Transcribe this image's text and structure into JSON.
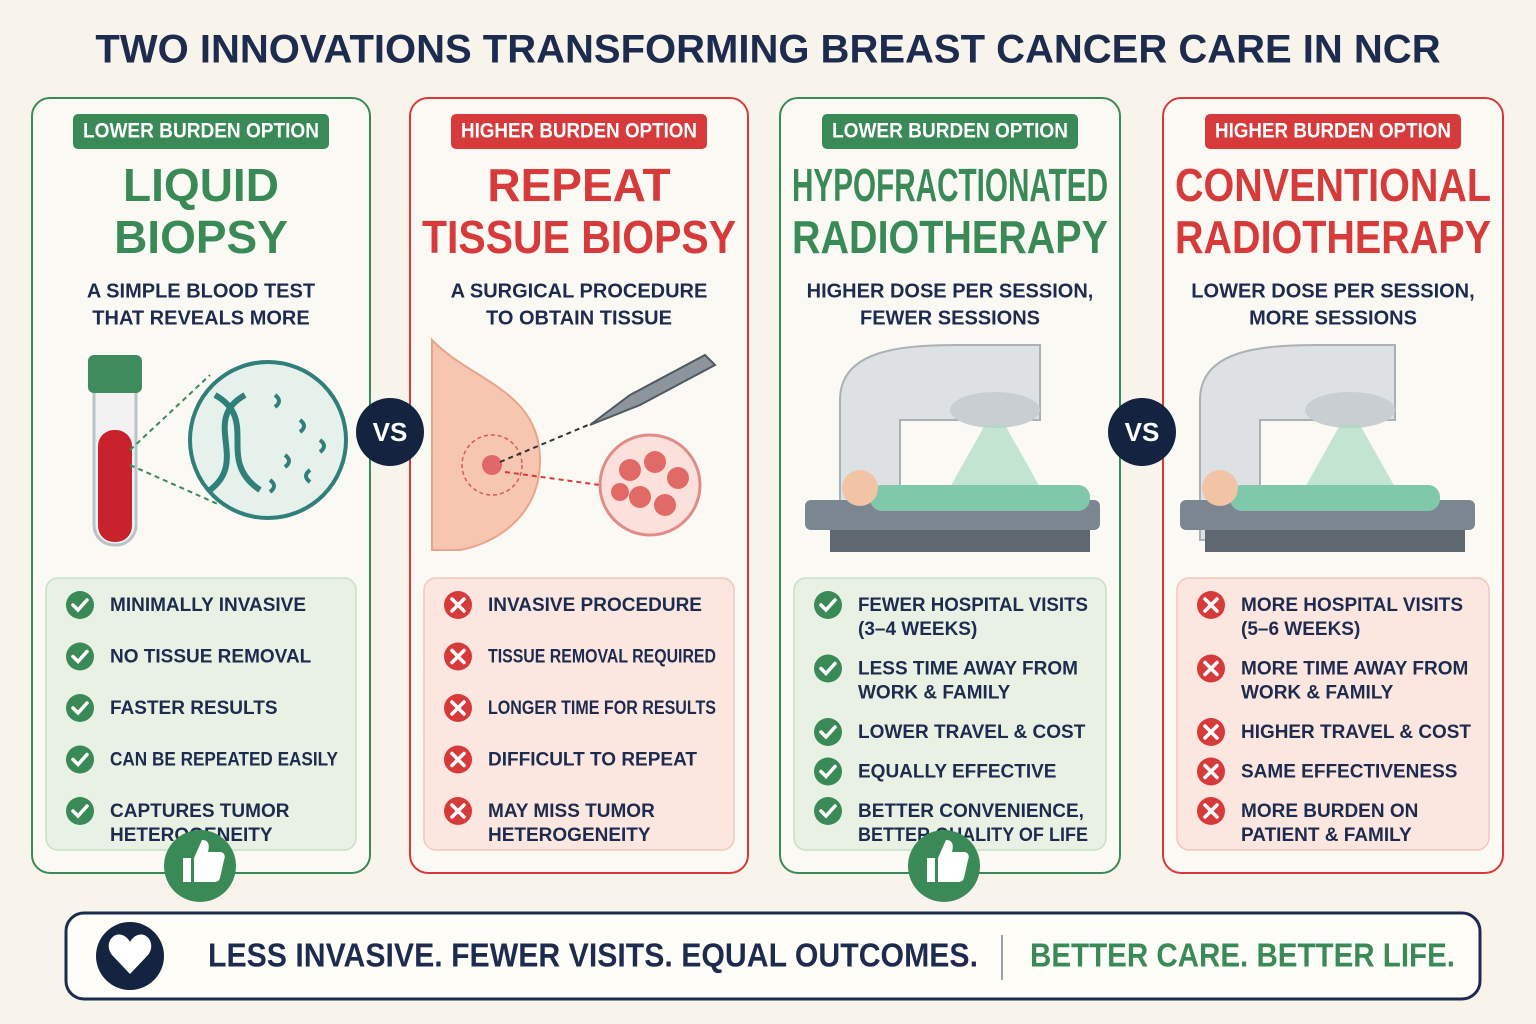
{
  "header": {
    "title": "TWO INNOVATIONS TRANSFORMING BREAST CANCER CARE IN NCR"
  },
  "cards": [
    {
      "badge": "LOWER BURDEN OPTION",
      "color": "#3a8a57",
      "icon": "check",
      "title": [
        "LIQUID",
        "BIOPSY"
      ],
      "subtitle": [
        "A SIMPLE BLOOD TEST",
        "THAT REVEALS MORE"
      ],
      "items": [
        [
          "MINIMALLY INVASIVE"
        ],
        [
          "NO TISSUE REMOVAL"
        ],
        [
          "FASTER RESULTS"
        ],
        [
          "CAN BE REPEATED EASILY"
        ],
        [
          "CAPTURES TUMOR",
          "HETEROGENEITY"
        ]
      ]
    },
    {
      "badge": "HIGHER BURDEN OPTION",
      "color": "#d63a3a",
      "icon": "x",
      "title": [
        "REPEAT",
        "TISSUE BIOPSY"
      ],
      "subtitle": [
        "A SURGICAL PROCEDURE",
        "TO OBTAIN TISSUE"
      ],
      "items": [
        [
          "INVASIVE PROCEDURE"
        ],
        [
          "TISSUE REMOVAL REQUIRED"
        ],
        [
          "LONGER TIME FOR RESULTS"
        ],
        [
          "DIFFICULT TO REPEAT"
        ],
        [
          "MAY MISS TUMOR",
          "HETEROGENEITY"
        ]
      ]
    },
    {
      "badge": "LOWER BURDEN OPTION",
      "color": "#3a8a57",
      "icon": "check",
      "title": [
        "HYPOFRACTIONATED",
        "RADIOTHERAPY"
      ],
      "subtitle": [
        "HIGHER DOSE PER SESSION,",
        "FEWER SESSIONS"
      ],
      "items": [
        [
          "FEWER HOSPITAL VISITS",
          "(3–4 WEEKS)"
        ],
        [
          "LESS TIME AWAY FROM",
          "WORK & FAMILY"
        ],
        [
          "LOWER TRAVEL & COST"
        ],
        [
          "EQUALLY EFFECTIVE"
        ],
        [
          "BETTER CONVENIENCE,",
          "BETTER QUALITY OF LIFE"
        ]
      ]
    },
    {
      "badge": "HIGHER BURDEN OPTION",
      "color": "#d63a3a",
      "icon": "x",
      "title": [
        "CONVENTIONAL",
        "RADIOTHERAPY"
      ],
      "subtitle": [
        "LOWER DOSE PER SESSION,",
        "MORE SESSIONS"
      ],
      "items": [
        [
          "MORE HOSPITAL VISITS",
          "(5–6 WEEKS)"
        ],
        [
          "MORE TIME AWAY FROM",
          "WORK & FAMILY"
        ],
        [
          "HIGHER TRAVEL & COST"
        ],
        [
          "SAME EFFECTIVENESS"
        ],
        [
          "MORE BURDEN ON",
          "PATIENT & FAMILY"
        ]
      ]
    }
  ],
  "vs": [
    "VS",
    "VS"
  ],
  "footer": {
    "left": "LESS INVASIVE. FEWER VISITS. EQUAL OUTCOMES.",
    "right": "BETTER CARE. BETTER LIFE."
  }
}
